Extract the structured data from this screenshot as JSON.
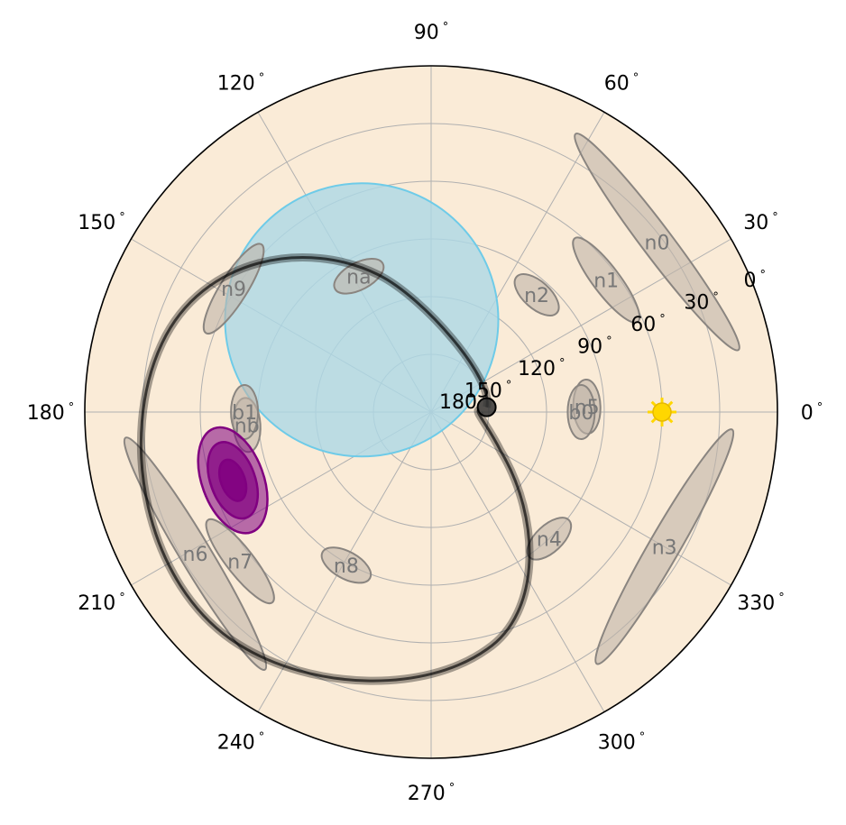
{
  "chart_data": {
    "type": "polar",
    "title": "",
    "theta_ticks": [
      {
        "angle": 0,
        "label": "0",
        "unit": "°"
      },
      {
        "angle": 30,
        "label": "30",
        "unit": "°"
      },
      {
        "angle": 60,
        "label": "60",
        "unit": "°"
      },
      {
        "angle": 90,
        "label": "90",
        "unit": "°"
      },
      {
        "angle": 120,
        "label": "120",
        "unit": "°"
      },
      {
        "angle": 150,
        "label": "150",
        "unit": "°"
      },
      {
        "angle": 180,
        "label": "180",
        "unit": "°"
      },
      {
        "angle": 210,
        "label": "210",
        "unit": "°"
      },
      {
        "angle": 240,
        "label": "240",
        "unit": "°"
      },
      {
        "angle": 270,
        "label": "270",
        "unit": "°"
      },
      {
        "angle": 300,
        "label": "300",
        "unit": "°"
      },
      {
        "angle": 330,
        "label": "330",
        "unit": "°"
      }
    ],
    "radial_axis": {
      "range": [
        0,
        180
      ],
      "center_label": "180",
      "tick_label_angle": 22.5,
      "ticks": [
        {
          "label": "0",
          "unit": "°"
        },
        {
          "label": "30",
          "unit": "°"
        },
        {
          "label": "60",
          "unit": "°"
        },
        {
          "label": "90",
          "unit": "°"
        },
        {
          "label": "120",
          "unit": "°"
        },
        {
          "label": "150",
          "unit": "°"
        },
        {
          "label": "180",
          "unit": "°"
        }
      ]
    },
    "grid": true,
    "colors": {
      "background": "#faebd7",
      "grid": "#b0b0b0",
      "node_fill": "#c0b4a8",
      "node_edge": "#8a8580",
      "node_label": "#777777",
      "cone_fill": "#add8e6",
      "cone_edge": "#6ecbe8",
      "sun": "#ffd700",
      "contour": "#800080",
      "path": "#000000"
    },
    "nodes": [
      {
        "label": "n0",
        "theta": 37,
        "r": 147
      },
      {
        "label": "n1",
        "theta": 37,
        "r": 114
      },
      {
        "label": "n2",
        "theta": 48,
        "r": 82
      },
      {
        "label": "n3",
        "theta": 330,
        "r": 140
      },
      {
        "label": "n4",
        "theta": 313,
        "r": 90
      },
      {
        "label": "n5",
        "theta": 2,
        "r": 81
      },
      {
        "label": "n6",
        "theta": 211,
        "r": 143
      },
      {
        "label": "n7",
        "theta": 218,
        "r": 126
      },
      {
        "label": "n8",
        "theta": 241,
        "r": 91
      },
      {
        "label": "n9",
        "theta": 148,
        "r": 121
      },
      {
        "label": "na",
        "theta": 118,
        "r": 80
      },
      {
        "label": "nb",
        "theta": 184,
        "r": 96
      },
      {
        "label": "b0",
        "theta": 0,
        "r": 78
      },
      {
        "label": "b1",
        "theta": 180,
        "r": 97
      }
    ],
    "sun_position": {
      "theta": 0,
      "r": 120
    },
    "contour_center": {
      "theta": 199,
      "r": 109
    },
    "viewing_cone": {
      "center_theta": 127,
      "center_r": 60,
      "radius_r": 71
    },
    "path": {
      "start": {
        "theta": 5,
        "r": 29
      },
      "turns": 1
    }
  }
}
